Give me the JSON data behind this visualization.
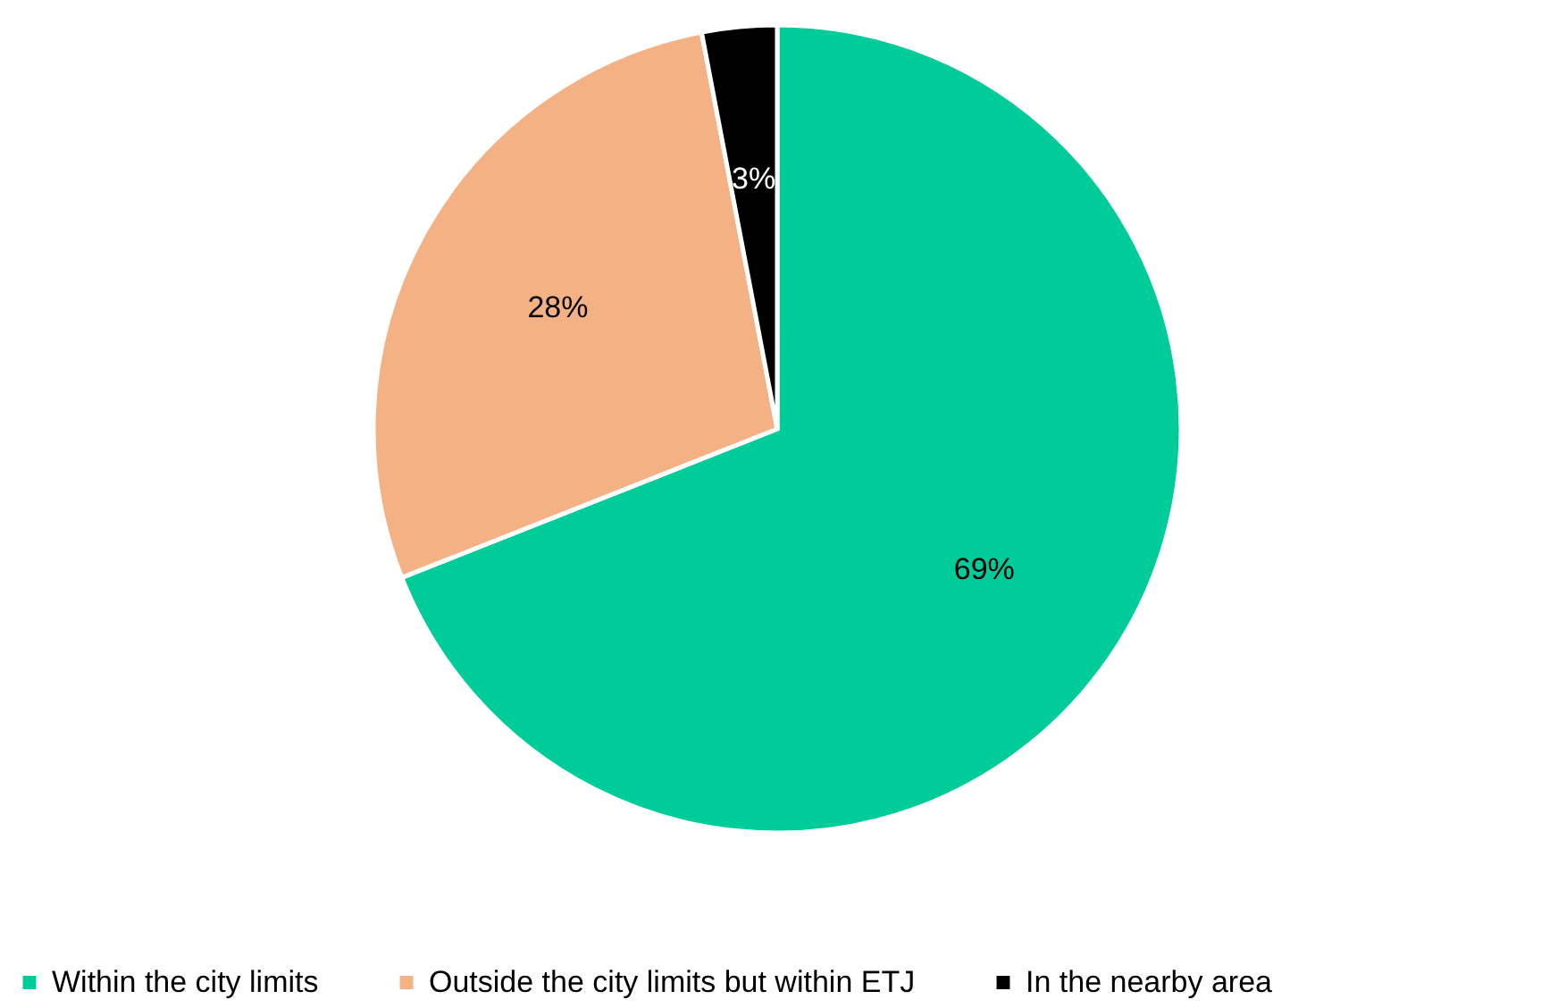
{
  "chart_data": {
    "type": "pie",
    "categories": [
      "Within the city limits",
      "Outside the city limits but within ETJ",
      "In the nearby area"
    ],
    "values": [
      69,
      28,
      3
    ],
    "colors": [
      "#00cc99",
      "#f4b183",
      "#000000"
    ],
    "value_labels": [
      "69%",
      "28%",
      "3%"
    ],
    "legend": "bottom"
  }
}
